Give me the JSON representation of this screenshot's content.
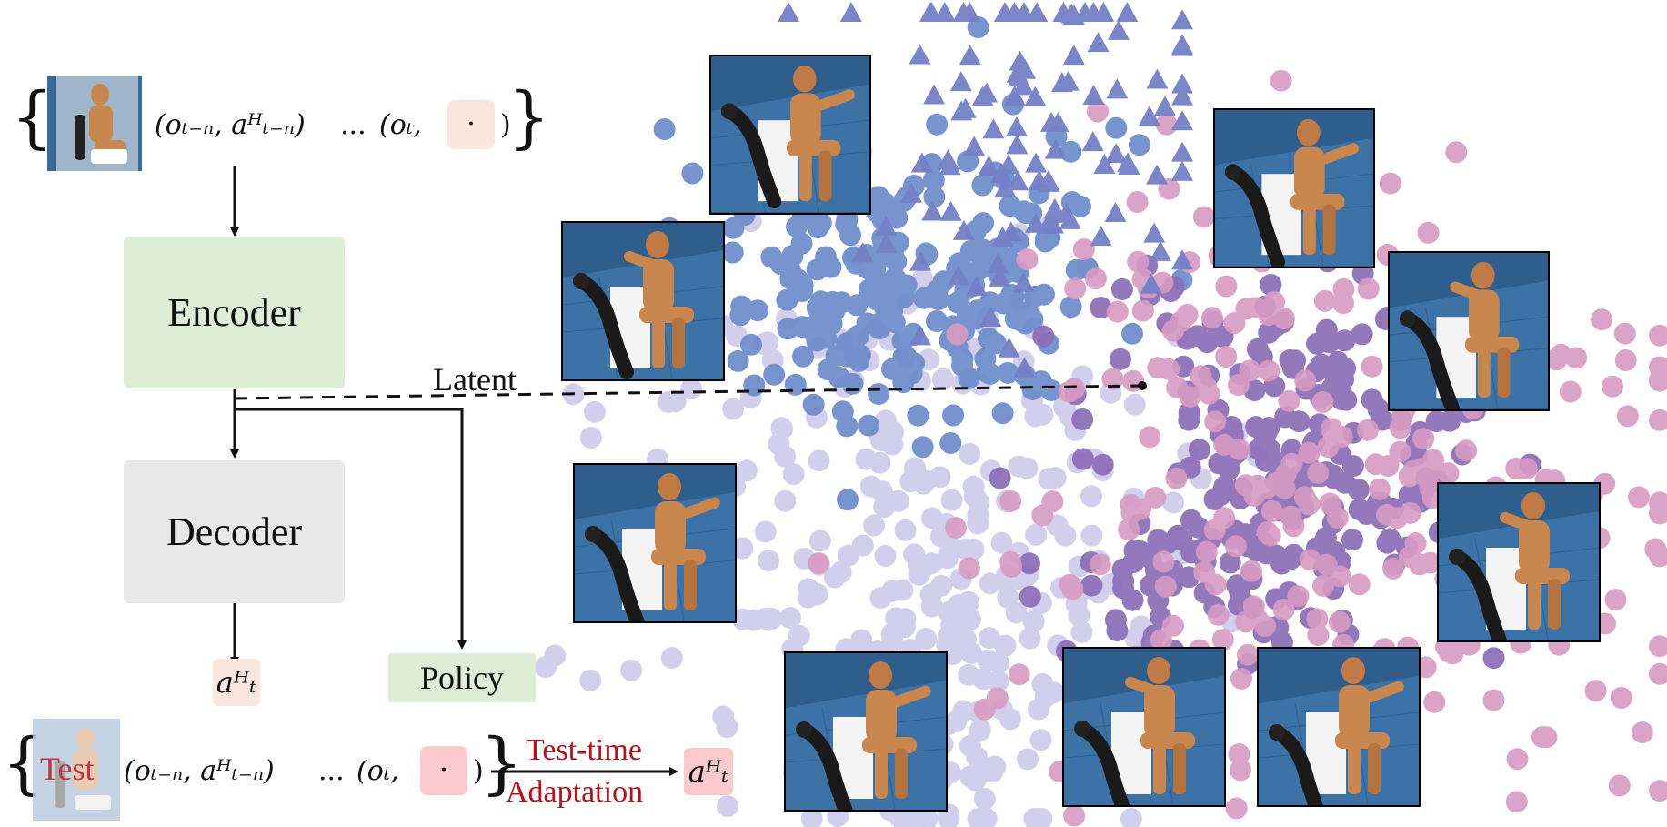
{
  "sequence_top": {
    "pair_prev": "(oₜ₋ₙ, aᴴₜ₋ₙ)",
    "ellipsis": "...",
    "pair_cur_open": "(oₜ,",
    "slot_symbol": "·",
    "close": ")"
  },
  "sequence_bottom": {
    "test_label": "Test",
    "pair_prev": "(oₜ₋ₙ, aᴴₜ₋ₙ)",
    "ellipsis": "...",
    "pair_cur_open": "(oₜ,",
    "slot_symbol": "·",
    "close": ")"
  },
  "blocks": {
    "encoder": "Encoder",
    "decoder": "Decoder",
    "policy": "Policy",
    "latent": "Latent"
  },
  "outputs": {
    "decoder_action": "aᴴₜ",
    "adapted_action": "aᴴₜ"
  },
  "adaptation": {
    "line1": "Test-time",
    "line2": "Adaptation"
  },
  "colors": {
    "encoder_bg": "#deedd6",
    "decoder_bg": "#e8e8e8",
    "accent_red": "#b5121b",
    "cluster_blue": "#6a86c8",
    "cluster_lavender": "#c9c6e6",
    "cluster_purple": "#8a6fb8",
    "cluster_pink": "#d596c0",
    "triangle_blue": "#7480c4"
  }
}
